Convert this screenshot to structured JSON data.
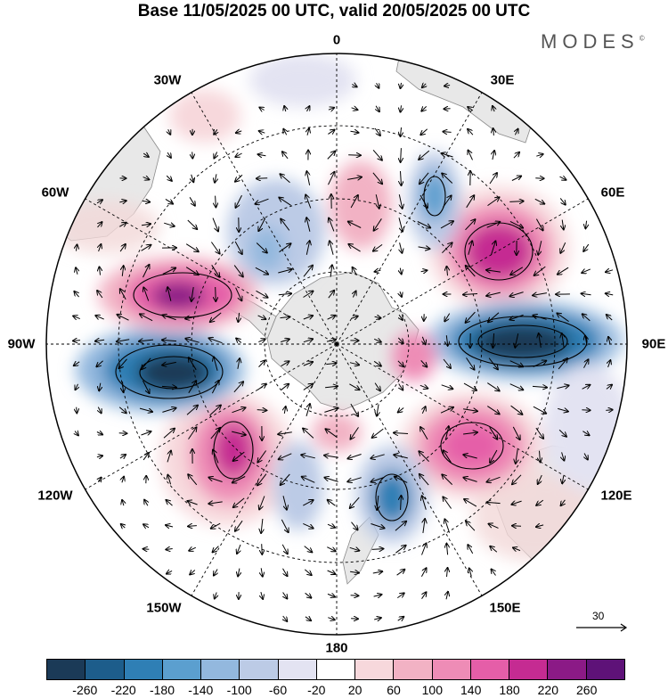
{
  "title": "Base 11/05/2025 00 UTC, valid 20/05/2025 00 UTC",
  "logo": "MODES",
  "logo_mark": "©",
  "longitude_labels": [
    "0",
    "30E",
    "60E",
    "90E",
    "120E",
    "150E",
    "180",
    "150W",
    "120W",
    "90W",
    "60W",
    "30W"
  ],
  "reference_vector": {
    "label": "30"
  },
  "colorbar": {
    "ticks": [
      "-260",
      "-220",
      "-180",
      "-140",
      "-100",
      "-60",
      "-20",
      "20",
      "60",
      "100",
      "140",
      "180",
      "220",
      "260"
    ],
    "colors": [
      "#1b3a57",
      "#1d5d8b",
      "#2f7fb5",
      "#5b9fcf",
      "#93b8de",
      "#bccbe6",
      "#e3e3f2",
      "#ffffff",
      "#f7d8dc",
      "#f2b2c4",
      "#ee8cb6",
      "#e55ea8",
      "#c52b92",
      "#8b1a86",
      "#5e1278"
    ]
  },
  "colors": {
    "land": "#e8e8e8",
    "coast": "#8a8a8a",
    "grid": "#000000"
  }
}
